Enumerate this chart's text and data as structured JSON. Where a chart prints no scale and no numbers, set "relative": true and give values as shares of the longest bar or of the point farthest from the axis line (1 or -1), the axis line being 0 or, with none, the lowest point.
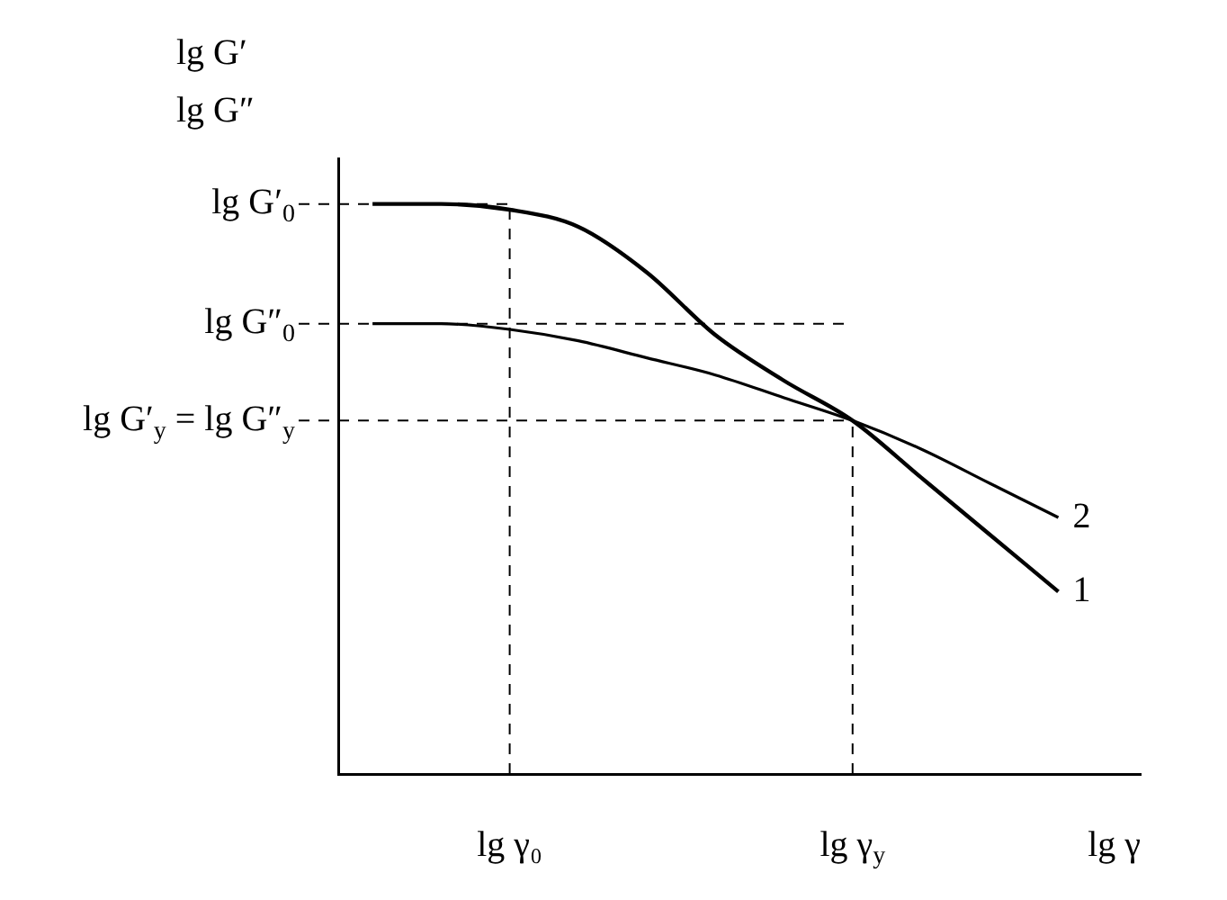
{
  "chart_data": {
    "type": "line",
    "relative": true,
    "ylabel": "lg G′\nlg G″",
    "xlabel": "lg γ",
    "grid": false,
    "legend": false,
    "marker": "none",
    "line_style": "solid",
    "categories": [
      null,
      null,
      "lg γ₀",
      null,
      null,
      null,
      null,
      "lg γ$_{y}$",
      null,
      null,
      null
    ],
    "series": [
      {
        "name": "1",
        "color": "#000000",
        "values": [
          1,
          1,
          0.99,
          0.96,
          0.88,
          0.77,
          0.69,
          0.62,
          0.52,
          0.42,
          0.32
        ]
      },
      {
        "name": "2",
        "color": "#000000",
        "values": [
          0.79,
          0.79,
          0.78,
          0.76,
          0.73,
          0.7,
          0.66,
          0.62,
          0.57,
          0.51,
          0.45
        ]
      }
    ],
    "ref_lines": [
      {
        "axis": "y",
        "value": 1,
        "label": "lg G′$_{0}$",
        "line_style": "dashed"
      },
      {
        "axis": "y",
        "value": 0.79,
        "label": "lg G″$_{0}$",
        "line_style": "dashed"
      },
      {
        "axis": "y",
        "value": 0.62,
        "label": "lg G′$_{y}$ = lg G″$_{y}$",
        "line_style": "dashed"
      },
      {
        "axis": "x",
        "value": "lg γ₀",
        "line_style": "dashed"
      },
      {
        "axis": "x",
        "value": "lg γ$_{y}$",
        "line_style": "dashed"
      }
    ]
  }
}
